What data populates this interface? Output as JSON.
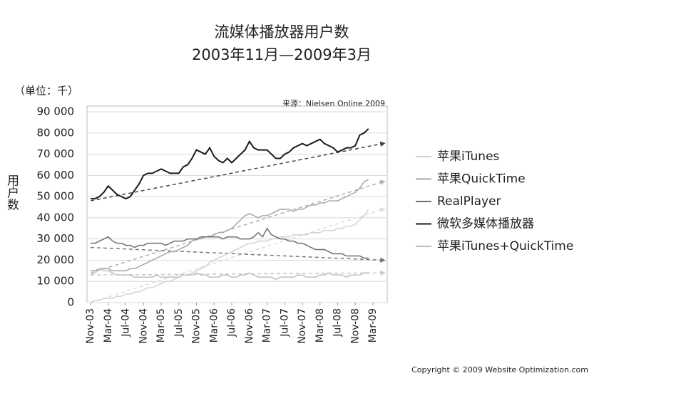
{
  "chart_data": {
    "type": "line",
    "title": "流媒体播放器用户数",
    "subtitle": "2003年11月—2009年3月",
    "unit_label": "（单位：千）",
    "y_label": "用户数",
    "source": "来源：Nielsen Online 2009",
    "copyright": "Copyright © 2009 Website Optimization.com",
    "categories": [
      "Nov-03",
      null,
      null,
      null,
      "Mar-04",
      null,
      null,
      null,
      "Jul-04",
      null,
      null,
      null,
      "Nov-04",
      null,
      null,
      null,
      "Mar-05",
      null,
      null,
      null,
      "Jul-05",
      null,
      null,
      null,
      "Nov-05",
      null,
      null,
      null,
      "Mar-06",
      null,
      null,
      null,
      "Jul-06",
      null,
      null,
      null,
      "Nov-06",
      null,
      null,
      null,
      "Mar-07",
      null,
      null,
      null,
      "Jul-07",
      null,
      null,
      null,
      "Nov-07",
      null,
      null,
      null,
      "Mar-08",
      null,
      null,
      null,
      "Jul-08",
      null,
      null,
      null,
      "Nov-08",
      null,
      null,
      null,
      "Mar-09"
    ],
    "ylim": [
      0,
      90000
    ],
    "yticks": [
      0,
      {
        "value": 10000,
        "label": "10 000"
      },
      {
        "value": 20000,
        "label": "20 000"
      },
      {
        "value": 30000,
        "label": "30 000"
      },
      {
        "value": 40000,
        "label": "40 000"
      },
      {
        "value": 50000,
        "label": "50 000"
      },
      {
        "value": 60000,
        "label": "60 000"
      },
      {
        "value": 70000,
        "label": "70 000"
      },
      {
        "value": 80000,
        "label": "80 000"
      },
      {
        "value": 90000,
        "label": "90 000"
      }
    ],
    "grid": true,
    "series": [
      {
        "name": "苹果iTunes",
        "color": "#d2d2d2",
        "width": 1.5,
        "values": [
          0,
          1000,
          1000,
          2000,
          2000,
          2000,
          3000,
          3000,
          4000,
          4000,
          5000,
          5000,
          6000,
          7000,
          7000,
          8000,
          9000,
          10000,
          10000,
          11000,
          12000,
          13000,
          13000,
          14000,
          15000,
          16000,
          17000,
          19000,
          20000,
          21000,
          22000,
          23000,
          24000,
          25000,
          26000,
          27000,
          28000,
          28000,
          29000,
          29000,
          29000,
          30000,
          30000,
          31000,
          31000,
          31000,
          32000,
          32000,
          32000,
          32000,
          33000,
          33000,
          33000,
          34000,
          34000,
          34000,
          35000,
          35000,
          36000,
          36000,
          37000,
          39000,
          41000,
          44000,
          null
        ]
      },
      {
        "name": "苹果QuickTime",
        "color": "#a6a6a6",
        "width": 1.5,
        "values": [
          15000,
          15000,
          16000,
          16000,
          16000,
          15000,
          15000,
          15000,
          15000,
          16000,
          16000,
          17000,
          18000,
          19000,
          20000,
          21000,
          22000,
          23000,
          24000,
          24000,
          25000,
          26000,
          27000,
          29000,
          30000,
          30000,
          31000,
          31000,
          32000,
          33000,
          33000,
          34000,
          35000,
          37000,
          39000,
          41000,
          42000,
          41000,
          40000,
          41000,
          41000,
          42000,
          43000,
          44000,
          44000,
          44000,
          43000,
          44000,
          44000,
          45000,
          46000,
          46000,
          47000,
          47000,
          48000,
          48000,
          48000,
          49000,
          50000,
          51000,
          52000,
          54000,
          57000,
          58000,
          null
        ]
      },
      {
        "name": "RealPlayer",
        "color": "#6e6e6e",
        "width": 1.5,
        "values": [
          28000,
          28000,
          29000,
          30000,
          31000,
          29000,
          28000,
          28000,
          27000,
          27000,
          26000,
          27000,
          27000,
          28000,
          28000,
          28000,
          28000,
          27000,
          28000,
          29000,
          29000,
          29000,
          30000,
          30000,
          30000,
          31000,
          31000,
          31000,
          31000,
          31000,
          30000,
          31000,
          31000,
          31000,
          30000,
          30000,
          30000,
          31000,
          33000,
          31000,
          35000,
          32000,
          31000,
          30000,
          30000,
          29000,
          29000,
          28000,
          28000,
          27000,
          26000,
          25000,
          25000,
          25000,
          24000,
          23000,
          23000,
          23000,
          22000,
          22000,
          22000,
          22000,
          21000,
          21000,
          null
        ]
      },
      {
        "name": "微软多媒体播放器",
        "color": "#1a1a1a",
        "width": 2,
        "values": [
          49000,
          49000,
          50000,
          52000,
          55000,
          53000,
          51000,
          50000,
          49000,
          50000,
          53000,
          56000,
          60000,
          61000,
          61000,
          62000,
          63000,
          62000,
          61000,
          61000,
          61000,
          64000,
          65000,
          68000,
          72000,
          71000,
          70000,
          73000,
          69000,
          67000,
          66000,
          68000,
          66000,
          68000,
          70000,
          72000,
          76000,
          73000,
          72000,
          72000,
          72000,
          70000,
          68000,
          68000,
          70000,
          71000,
          73000,
          74000,
          75000,
          74000,
          75000,
          76000,
          77000,
          75000,
          74000,
          73000,
          71000,
          72000,
          73000,
          73000,
          74000,
          79000,
          80000,
          82000,
          null
        ]
      },
      {
        "name": "苹果iTunes+QuickTime",
        "color": "#bdbdbd",
        "width": 1.5,
        "values": [
          13000,
          14000,
          16000,
          15000,
          15000,
          14000,
          13000,
          13000,
          13000,
          13000,
          12000,
          12000,
          12000,
          12000,
          12000,
          13000,
          12000,
          12000,
          12000,
          12000,
          12000,
          13000,
          13000,
          13000,
          14000,
          13000,
          13000,
          12000,
          12000,
          12000,
          13000,
          13000,
          12000,
          12000,
          13000,
          13000,
          14000,
          13000,
          12000,
          12000,
          12000,
          12000,
          11000,
          12000,
          12000,
          12000,
          12000,
          13000,
          13000,
          12000,
          12000,
          12000,
          13000,
          13000,
          14000,
          13000,
          13000,
          13000,
          12000,
          13000,
          13000,
          13000,
          14000,
          14000,
          null
        ]
      }
    ],
    "trends": [
      {
        "color": "#dddddd",
        "values": [
          0,
          44000
        ]
      },
      {
        "color": "#b0b0b0",
        "values": [
          14000,
          57000
        ]
      },
      {
        "color": "#777777",
        "values": [
          26000,
          20000
        ]
      },
      {
        "color": "#444444",
        "values": [
          48000,
          75000
        ]
      },
      {
        "color": "#c8c8c8",
        "values": [
          13000,
          14000
        ]
      }
    ]
  }
}
